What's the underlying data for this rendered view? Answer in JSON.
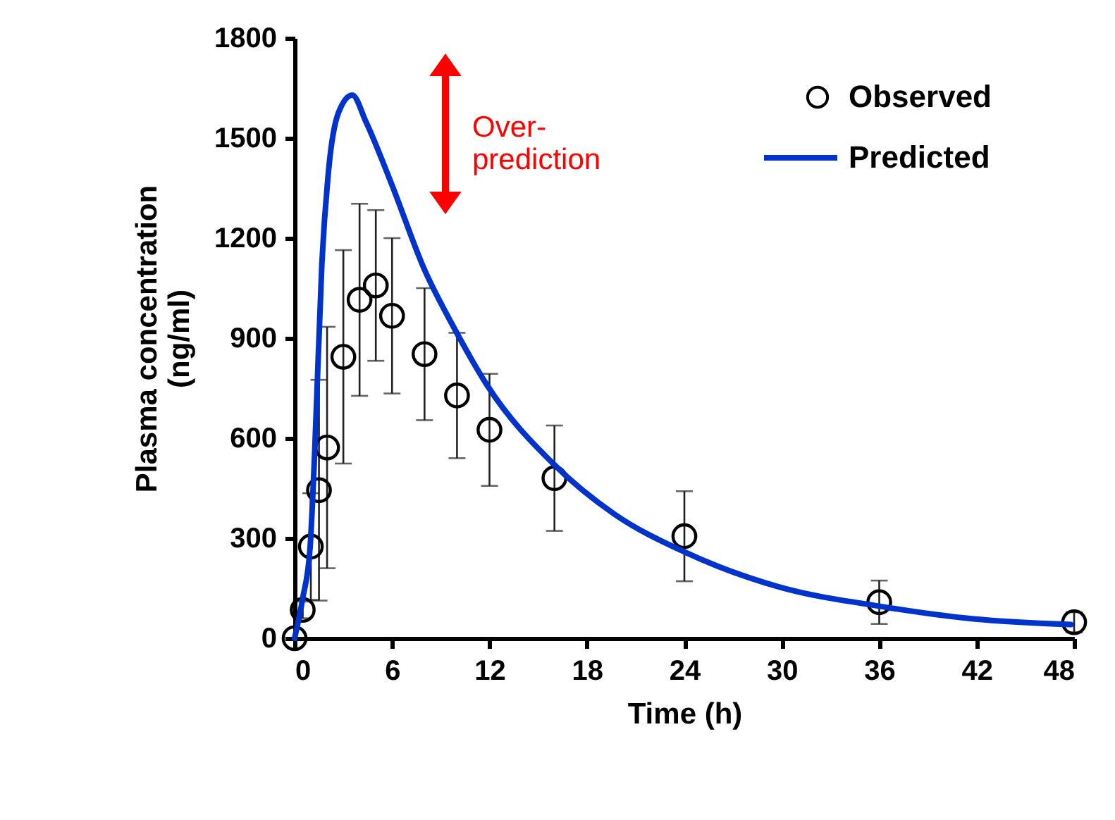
{
  "chart_data": {
    "type": "scatter",
    "xlabel": "Time (h)",
    "ylabel": "Plasma concentration (ng/ml)",
    "xlim": [
      0,
      48
    ],
    "xticks": [
      0,
      6,
      12,
      18,
      24,
      30,
      36,
      42,
      48
    ],
    "ylim": [
      0,
      1800
    ],
    "yticks": [
      0,
      300,
      600,
      900,
      1200,
      1500,
      1800
    ],
    "grid": false,
    "legend": "top right",
    "series": [
      {
        "name": "Observed",
        "color": "#000000",
        "marker": "circle",
        "x": [
          0,
          0.5,
          1,
          1.5,
          2,
          3,
          4,
          5,
          6,
          8,
          10,
          12,
          16,
          24,
          36,
          48
        ],
        "values": [
          0,
          85,
          275,
          444,
          572,
          844,
          1015,
          1058,
          967,
          852,
          728,
          625,
          480,
          306,
          108,
          48
        ],
        "errors": [
          null,
          25,
          160,
          331,
          362,
          320,
          288,
          226,
          233,
          198,
          188,
          168,
          158,
          135,
          65,
          30
        ]
      },
      {
        "name": "Predicted",
        "type": "line",
        "color": "#0033cc",
        "marker": "none",
        "line_style": "solid",
        "x": [
          0,
          0.5,
          0.95,
          1.24,
          1.68,
          2.1,
          2.7,
          3.55,
          4.4,
          5.95,
          8.0,
          9.85,
          11.85,
          16.0,
          19.7,
          24.0,
          29.9,
          35.9,
          41.8,
          47.8
        ],
        "values": [
          0,
          120,
          270,
          562,
          1125,
          1407,
          1576,
          1629,
          1548,
          1365,
          1105,
          928,
          759,
          520,
          372,
          259,
          153,
          97,
          58,
          41
        ]
      }
    ],
    "annotations": [
      "Over-\nprediction"
    ]
  }
}
